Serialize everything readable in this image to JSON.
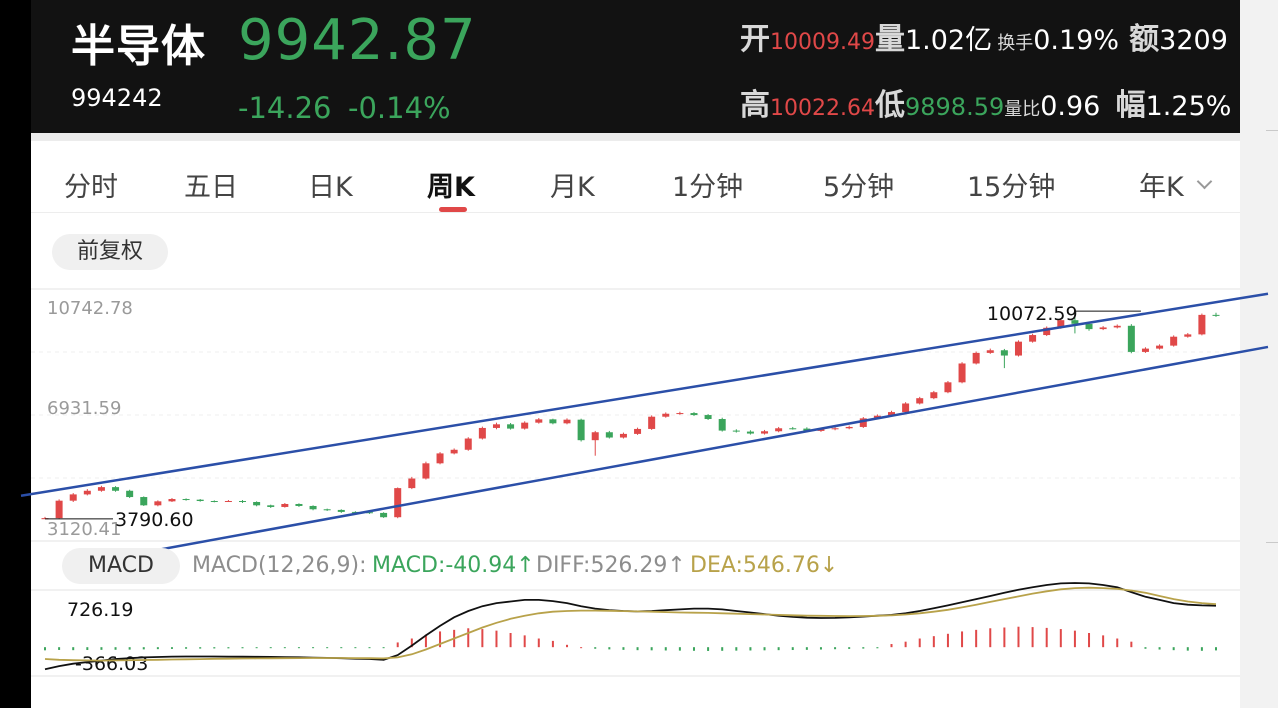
{
  "header": {
    "name": "半导体",
    "code": "994242",
    "price": "9942.87",
    "change": "-14.26",
    "change_pct": "-0.14%",
    "open_label": "开",
    "open_value": "10009.49",
    "volume_label": "量",
    "volume_value": "1.02亿",
    "turnover_label": "换手",
    "turnover_value": "0.19%",
    "amount_label": "额",
    "amount_value": "3209",
    "high_label": "高",
    "high_value": "10022.64",
    "low_label": "低",
    "low_value": "9898.59",
    "volratio_label": "量比",
    "volratio_value": "0.96",
    "amp_label": "幅",
    "amp_value": "1.25%"
  },
  "tabs": [
    {
      "label": "分时"
    },
    {
      "label": "五日"
    },
    {
      "label": "日K"
    },
    {
      "label": "周K"
    },
    {
      "label": "月K"
    },
    {
      "label": "1分钟"
    },
    {
      "label": "5分钟"
    },
    {
      "label": "15分钟"
    },
    {
      "label": "年K"
    }
  ],
  "active_tab": "周K",
  "adjust_label": "前复权",
  "chart": {
    "y_top_label": "10742.78",
    "y_mid_label": "6931.59",
    "y_bottom_label": "3120.41",
    "max_marker": "10072.59",
    "min_marker": "3790.60"
  },
  "macd": {
    "pill": "MACD",
    "params": "MACD(12,26,9):",
    "macd_value": "MACD:-40.94↑",
    "diff_value": "DIFF:526.29↑",
    "dea_value": "DEA:546.76↓",
    "y_top_label": "726.19",
    "y_bottom_label": "-366.03"
  },
  "colors": {
    "up": "#e04848",
    "down": "#3ba55c",
    "channel": "#2b4fa8",
    "dea": "#b8a24a"
  },
  "chart_data": {
    "type": "candlestick",
    "ylim": [
      3120.41,
      10742.78
    ],
    "close": [
      3812,
      4340,
      4530,
      4640,
      4750,
      4640,
      4450,
      4200,
      4320,
      4390,
      4370,
      4330,
      4320,
      4330,
      4300,
      4200,
      4150,
      4240,
      4180,
      4080,
      4060,
      4000,
      3990,
      3970,
      3840,
      4720,
      5010,
      5470,
      5770,
      5880,
      6220,
      6540,
      6650,
      6520,
      6700,
      6800,
      6680,
      6790,
      6170,
      6410,
      6250,
      6360,
      6510,
      6880,
      6970,
      6990,
      6930,
      6810,
      6460,
      6430,
      6370,
      6440,
      6530,
      6520,
      6450,
      6500,
      6530,
      6570,
      6830,
      6910,
      7020,
      7280,
      7440,
      7620,
      7920,
      8490,
      8810,
      8890,
      8730,
      9150,
      9350,
      9570,
      9800,
      9690,
      9530,
      9580,
      9630,
      8840,
      8940,
      9030,
      9300,
      9370,
      9960,
      9943
    ],
    "open": [
      3780,
      3812,
      4340,
      4530,
      4640,
      4750,
      4640,
      4450,
      4200,
      4320,
      4390,
      4370,
      4330,
      4320,
      4330,
      4300,
      4200,
      4150,
      4240,
      4180,
      4080,
      4060,
      4000,
      3990,
      3970,
      3840,
      4720,
      5010,
      5470,
      5770,
      5880,
      6220,
      6540,
      6650,
      6520,
      6700,
      6800,
      6680,
      6790,
      6170,
      6410,
      6250,
      6360,
      6510,
      6880,
      6970,
      6990,
      6930,
      6810,
      6460,
      6430,
      6370,
      6440,
      6530,
      6520,
      6450,
      6500,
      6530,
      6570,
      6830,
      6910,
      7020,
      7280,
      7440,
      7620,
      7920,
      8490,
      8810,
      8890,
      8730,
      9150,
      9350,
      9570,
      9800,
      9690,
      9530,
      9580,
      9630,
      8840,
      8940,
      9030,
      9300,
      9370,
      9960
    ],
    "high": [
      3850,
      4380,
      4570,
      4690,
      4790,
      4780,
      4670,
      4470,
      4350,
      4420,
      4410,
      4390,
      4350,
      4360,
      4360,
      4320,
      4220,
      4270,
      4260,
      4200,
      4100,
      4080,
      4020,
      4010,
      3990,
      4740,
      5060,
      5520,
      5810,
      5920,
      6260,
      6580,
      6700,
      6690,
      6740,
      6840,
      6820,
      6830,
      6820,
      6450,
      6450,
      6400,
      6550,
      6920,
      7010,
      7030,
      7020,
      6960,
      6850,
      6500,
      6470,
      6480,
      6570,
      6570,
      6560,
      6540,
      6570,
      6610,
      6870,
      6950,
      7060,
      7320,
      7480,
      7660,
      7960,
      8530,
      8850,
      8940,
      8930,
      9190,
      9390,
      9610,
      9840,
      10072.59,
      9730,
      9620,
      9670,
      9680,
      8980,
      9070,
      9340,
      9410,
      10000,
      10022.64
    ],
    "low": [
      3790.6,
      3800,
      4300,
      4500,
      4610,
      4610,
      4420,
      4180,
      4170,
      4300,
      4340,
      4310,
      4290,
      4300,
      4270,
      4170,
      4120,
      4130,
      4150,
      4050,
      4030,
      3970,
      3960,
      3940,
      3820,
      3810,
      4690,
      4980,
      5440,
      5740,
      5850,
      6190,
      6500,
      6490,
      6490,
      6670,
      6650,
      6650,
      6130,
      5700,
      6220,
      6220,
      6330,
      6480,
      6850,
      6940,
      6900,
      6780,
      6430,
      6400,
      6340,
      6340,
      6410,
      6490,
      6420,
      6420,
      6470,
      6500,
      6540,
      6800,
      6880,
      6990,
      7250,
      7410,
      7590,
      7890,
      8460,
      8780,
      8350,
      8700,
      9120,
      9320,
      9540,
      9400,
      9480,
      9500,
      9550,
      8800,
      8810,
      8910,
      9000,
      9270,
      9340,
      9898.59
    ],
    "channel_upper": [
      [
        0,
        4490
      ],
      [
        1,
        10600
      ]
    ],
    "channel_lower": [
      [
        0,
        3000
      ],
      [
        1,
        8990
      ]
    ],
    "macd_ylim": [
      -366.03,
      726.19
    ],
    "macd_hist": [
      -40,
      -35,
      -38,
      -36,
      -34,
      -33,
      -31,
      -28,
      -25,
      -22,
      -20,
      -18,
      -16,
      -15,
      -14,
      -13,
      -12,
      -11,
      -10,
      -9,
      -8,
      -7,
      -6,
      -5,
      -4,
      60,
      110,
      160,
      200,
      220,
      240,
      230,
      210,
      180,
      150,
      110,
      80,
      30,
      0,
      -20,
      -28,
      -34,
      -38,
      -40,
      -42,
      -44,
      -46,
      -48,
      -46,
      -44,
      -42,
      -40,
      -38,
      -36,
      -34,
      -30,
      -26,
      -22,
      -18,
      -14,
      40,
      70,
      110,
      140,
      170,
      200,
      220,
      240,
      250,
      260,
      255,
      245,
      230,
      210,
      180,
      150,
      110,
      70,
      -20,
      -30,
      -38,
      -44,
      -46,
      -41
    ],
    "diff": [
      -280,
      -240,
      -210,
      -190,
      -170,
      -150,
      -140,
      -130,
      -125,
      -120,
      -118,
      -118,
      -119,
      -120,
      -121,
      -122,
      -124,
      -126,
      -128,
      -132,
      -136,
      -140,
      -146,
      -150,
      -160,
      -100,
      20,
      150,
      270,
      380,
      460,
      520,
      560,
      580,
      600,
      600,
      585,
      560,
      520,
      490,
      470,
      460,
      455,
      460,
      470,
      480,
      490,
      490,
      480,
      460,
      440,
      420,
      400,
      385,
      375,
      370,
      372,
      378,
      388,
      400,
      410,
      430,
      460,
      495,
      530,
      570,
      610,
      650,
      690,
      730,
      760,
      790,
      810,
      815,
      810,
      790,
      760,
      700,
      640,
      600,
      560,
      540,
      530,
      526.29
    ],
    "dea": [
      -150,
      -160,
      -165,
      -168,
      -170,
      -168,
      -166,
      -163,
      -160,
      -157,
      -154,
      -151,
      -148,
      -146,
      -144,
      -142,
      -141,
      -140,
      -139,
      -138,
      -138,
      -138,
      -139,
      -140,
      -142,
      -130,
      -90,
      -30,
      40,
      110,
      180,
      250,
      310,
      360,
      400,
      430,
      450,
      460,
      465,
      465,
      462,
      458,
      455,
      450,
      445,
      440,
      438,
      435,
      430,
      425,
      420,
      415,
      410,
      405,
      400,
      398,
      396,
      395,
      396,
      398,
      405,
      415,
      430,
      450,
      475,
      505,
      540,
      575,
      610,
      645,
      680,
      710,
      735,
      750,
      755,
      750,
      740,
      720,
      690,
      650,
      610,
      580,
      560,
      546.76
    ]
  }
}
